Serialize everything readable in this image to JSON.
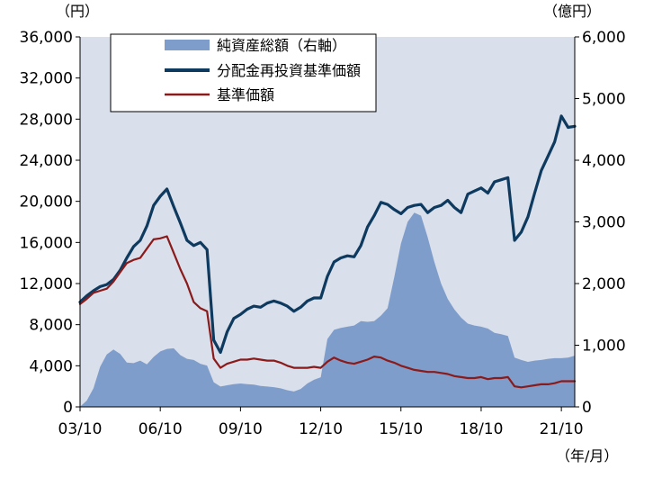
{
  "chart_data": {
    "type": "line",
    "title": "",
    "xlabel": "（年/月）",
    "ylabel_left": "（円）",
    "ylabel_right": "（億円）",
    "ylim_left": [
      0,
      36000
    ],
    "ylim_right": [
      0,
      6000
    ],
    "xlim": [
      "2003-10",
      "2022-04"
    ],
    "x_ticks": [
      "03/10",
      "06/10",
      "09/10",
      "12/10",
      "15/10",
      "18/10",
      "21/10"
    ],
    "y_ticks_left": [
      "0",
      "4,000",
      "8,000",
      "12,000",
      "16,000",
      "20,000",
      "24,000",
      "28,000",
      "32,000",
      "36,000"
    ],
    "y_ticks_right": [
      "0",
      "1,000",
      "2,000",
      "3,000",
      "4,000",
      "5,000",
      "6,000"
    ],
    "legend_position": "top",
    "grid": false,
    "background_color": "#d9dfeb",
    "series": [
      {
        "name": "純資産総額（右軸）",
        "type": "area",
        "axis": "right",
        "color": "#7f9dcb",
        "x": [
          "2003-10",
          "2004-01",
          "2004-04",
          "2004-07",
          "2004-10",
          "2005-01",
          "2005-04",
          "2005-07",
          "2005-10",
          "2006-01",
          "2006-04",
          "2006-07",
          "2006-10",
          "2007-01",
          "2007-04",
          "2007-07",
          "2007-10",
          "2008-01",
          "2008-04",
          "2008-07",
          "2008-10",
          "2009-01",
          "2009-04",
          "2009-07",
          "2009-10",
          "2010-01",
          "2010-04",
          "2010-07",
          "2010-10",
          "2011-01",
          "2011-04",
          "2011-07",
          "2011-10",
          "2012-01",
          "2012-04",
          "2012-07",
          "2012-10",
          "2013-01",
          "2013-04",
          "2013-07",
          "2013-10",
          "2014-01",
          "2014-04",
          "2014-07",
          "2014-10",
          "2015-01",
          "2015-04",
          "2015-07",
          "2015-10",
          "2016-01",
          "2016-04",
          "2016-07",
          "2016-10",
          "2017-01",
          "2017-04",
          "2017-07",
          "2017-10",
          "2018-01",
          "2018-04",
          "2018-07",
          "2018-10",
          "2019-01",
          "2019-04",
          "2019-07",
          "2019-10",
          "2020-01",
          "2020-04",
          "2020-07",
          "2020-10",
          "2021-01",
          "2021-04",
          "2021-07",
          "2021-10",
          "2022-01",
          "2022-04"
        ],
        "values": [
          5,
          100,
          300,
          650,
          850,
          930,
          860,
          720,
          710,
          750,
          690,
          810,
          900,
          940,
          950,
          840,
          780,
          760,
          700,
          670,
          400,
          330,
          350,
          370,
          380,
          370,
          360,
          340,
          330,
          320,
          300,
          270,
          250,
          290,
          380,
          440,
          480,
          1100,
          1250,
          1280,
          1300,
          1320,
          1390,
          1380,
          1390,
          1480,
          1600,
          2100,
          2650,
          3000,
          3150,
          3100,
          2750,
          2350,
          2000,
          1750,
          1580,
          1450,
          1350,
          1320,
          1300,
          1270,
          1200,
          1180,
          1150,
          800,
          760,
          730,
          750,
          760,
          780,
          790,
          790,
          800,
          830
        ]
      },
      {
        "name": "分配金再投資基準価額",
        "type": "line",
        "axis": "left",
        "color": "#0d3a5e",
        "x": [
          "2003-10",
          "2004-01",
          "2004-04",
          "2004-07",
          "2004-10",
          "2005-01",
          "2005-04",
          "2005-07",
          "2005-10",
          "2006-01",
          "2006-04",
          "2006-07",
          "2006-10",
          "2007-01",
          "2007-04",
          "2007-07",
          "2007-10",
          "2008-01",
          "2008-04",
          "2008-07",
          "2008-10",
          "2009-01",
          "2009-04",
          "2009-07",
          "2009-10",
          "2010-01",
          "2010-04",
          "2010-07",
          "2010-10",
          "2011-01",
          "2011-04",
          "2011-07",
          "2011-10",
          "2012-01",
          "2012-04",
          "2012-07",
          "2012-10",
          "2013-01",
          "2013-04",
          "2013-07",
          "2013-10",
          "2014-01",
          "2014-04",
          "2014-07",
          "2014-10",
          "2015-01",
          "2015-04",
          "2015-07",
          "2015-10",
          "2016-01",
          "2016-04",
          "2016-07",
          "2016-10",
          "2017-01",
          "2017-04",
          "2017-07",
          "2017-10",
          "2018-01",
          "2018-04",
          "2018-07",
          "2018-10",
          "2019-01",
          "2019-04",
          "2019-07",
          "2019-10",
          "2020-01",
          "2020-04",
          "2020-07",
          "2020-10",
          "2021-01",
          "2021-04",
          "2021-07",
          "2021-10",
          "2022-01",
          "2022-04"
        ],
        "values": [
          10200,
          10800,
          11300,
          11700,
          11900,
          12400,
          13300,
          14500,
          15600,
          16200,
          17600,
          19600,
          20500,
          21200,
          19500,
          17900,
          16200,
          15700,
          16000,
          15300,
          6500,
          5300,
          7300,
          8600,
          9000,
          9500,
          9800,
          9700,
          10100,
          10300,
          10100,
          9800,
          9300,
          9700,
          10300,
          10600,
          10600,
          12700,
          14100,
          14500,
          14700,
          14600,
          15700,
          17500,
          18600,
          19900,
          19700,
          19200,
          18800,
          19400,
          19600,
          19700,
          18900,
          19400,
          19600,
          20100,
          19400,
          18900,
          20700,
          21000,
          21300,
          20800,
          21900,
          22100,
          22300,
          16200,
          17000,
          18500,
          20800,
          23000,
          24400,
          25800,
          28300,
          27200,
          27300
        ]
      },
      {
        "name": "基準価額",
        "type": "line",
        "axis": "left",
        "color": "#8b1a1a",
        "x": [
          "2003-10",
          "2004-01",
          "2004-04",
          "2004-07",
          "2004-10",
          "2005-01",
          "2005-04",
          "2005-07",
          "2005-10",
          "2006-01",
          "2006-04",
          "2006-07",
          "2006-10",
          "2007-01",
          "2007-04",
          "2007-07",
          "2007-10",
          "2008-01",
          "2008-04",
          "2008-07",
          "2008-10",
          "2009-01",
          "2009-04",
          "2009-07",
          "2009-10",
          "2010-01",
          "2010-04",
          "2010-07",
          "2010-10",
          "2011-01",
          "2011-04",
          "2011-07",
          "2011-10",
          "2012-01",
          "2012-04",
          "2012-07",
          "2012-10",
          "2013-01",
          "2013-04",
          "2013-07",
          "2013-10",
          "2014-01",
          "2014-04",
          "2014-07",
          "2014-10",
          "2015-01",
          "2015-04",
          "2015-07",
          "2015-10",
          "2016-01",
          "2016-04",
          "2016-07",
          "2016-10",
          "2017-01",
          "2017-04",
          "2017-07",
          "2017-10",
          "2018-01",
          "2018-04",
          "2018-07",
          "2018-10",
          "2019-01",
          "2019-04",
          "2019-07",
          "2019-10",
          "2020-01",
          "2020-04",
          "2020-07",
          "2020-10",
          "2021-01",
          "2021-04",
          "2021-07",
          "2021-10",
          "2022-01",
          "2022-04"
        ],
        "values": [
          10000,
          10500,
          11100,
          11300,
          11500,
          12200,
          13100,
          14000,
          14300,
          14500,
          15400,
          16300,
          16400,
          16600,
          15000,
          13400,
          12000,
          10200,
          9600,
          9300,
          4700,
          3800,
          4200,
          4400,
          4600,
          4600,
          4700,
          4600,
          4500,
          4500,
          4300,
          4000,
          3800,
          3800,
          3800,
          3900,
          3800,
          4400,
          4800,
          4500,
          4300,
          4200,
          4400,
          4600,
          4900,
          4800,
          4500,
          4300,
          4000,
          3800,
          3600,
          3500,
          3400,
          3400,
          3300,
          3200,
          3000,
          2900,
          2800,
          2800,
          2900,
          2700,
          2800,
          2800,
          2900,
          2000,
          1900,
          2000,
          2100,
          2200,
          2200,
          2300,
          2500,
          2500,
          2500
        ]
      }
    ]
  }
}
